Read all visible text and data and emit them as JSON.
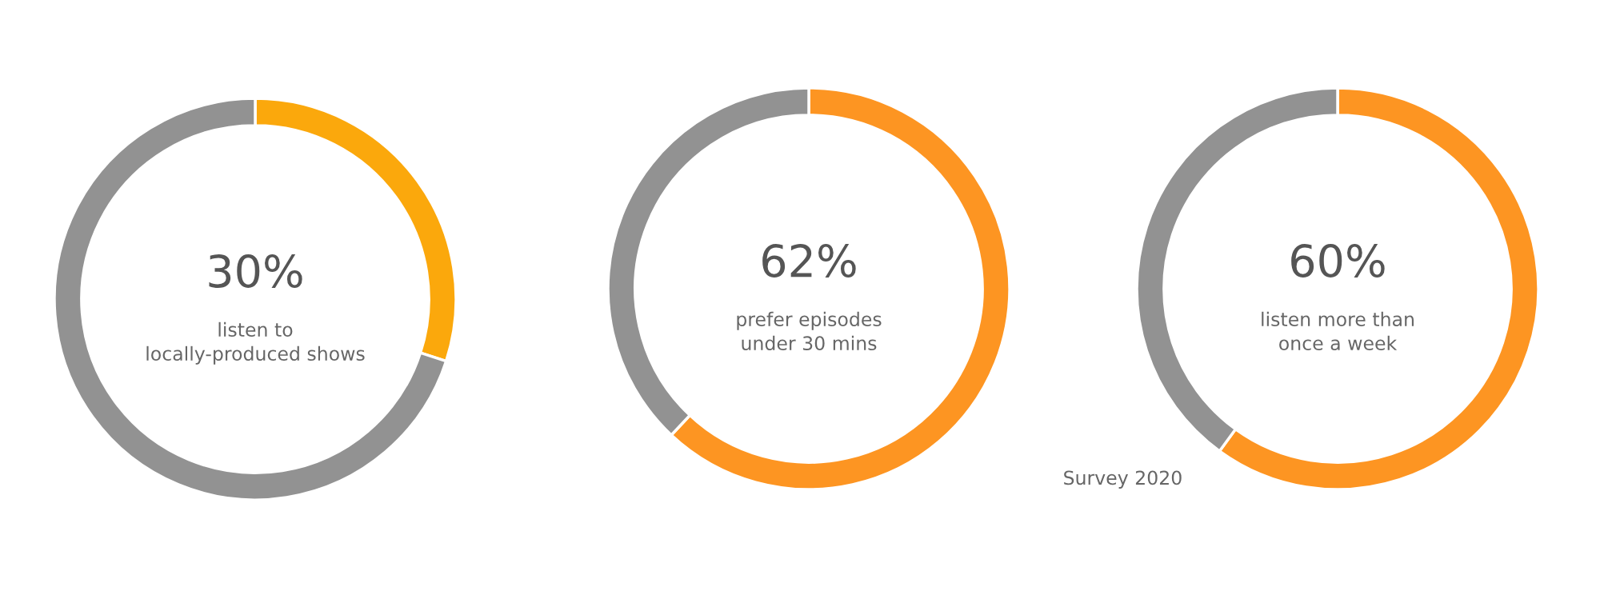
{
  "chart_data": [
    {
      "type": "donut",
      "categories": [
        null,
        null
      ],
      "values": [
        30,
        70
      ],
      "colors": [
        "#fba80c",
        "#929292"
      ],
      "annotations": [
        "30%",
        "listen to\nlocally-produced shows"
      ]
    },
    {
      "type": "donut",
      "categories": [
        null,
        null
      ],
      "values": [
        62,
        38
      ],
      "colors": [
        "#fd9522",
        "#929292"
      ],
      "annotations": [
        "62%",
        "prefer episodes\nunder 30 mins"
      ]
    },
    {
      "type": "donut",
      "categories": [
        null,
        null
      ],
      "values": [
        60,
        40
      ],
      "colors": [
        "#fd9522",
        "#929292"
      ],
      "annotations": [
        "60%",
        "listen more than\nonce a week",
        "Survey 2020"
      ]
    }
  ]
}
